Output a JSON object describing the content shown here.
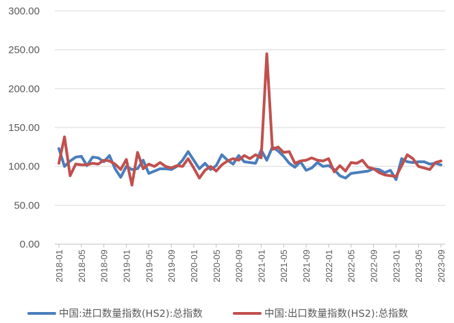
{
  "chart_data": {
    "type": "line",
    "title": "",
    "xlabel": "",
    "ylabel": "",
    "ylim": [
      0,
      300
    ],
    "y_ticks": [
      0,
      50,
      100,
      150,
      200,
      250,
      300
    ],
    "y_tick_labels": [
      "0.00",
      "50.00",
      "100.00",
      "150.00",
      "200.00",
      "250.00",
      "300.00"
    ],
    "grid": "horizontal",
    "legend_position": "bottom",
    "x": [
      "2018-01",
      "2018-02",
      "2018-03",
      "2018-04",
      "2018-05",
      "2018-06",
      "2018-07",
      "2018-08",
      "2018-09",
      "2018-10",
      "2018-11",
      "2018-12",
      "2019-01",
      "2019-02",
      "2019-03",
      "2019-04",
      "2019-05",
      "2019-06",
      "2019-07",
      "2019-08",
      "2019-09",
      "2019-10",
      "2019-11",
      "2019-12",
      "2020-01",
      "2020-02",
      "2020-03",
      "2020-04",
      "2020-05",
      "2020-06",
      "2020-07",
      "2020-08",
      "2020-09",
      "2020-10",
      "2020-11",
      "2020-12",
      "2021-01",
      "2021-02",
      "2021-03",
      "2021-04",
      "2021-05",
      "2021-06",
      "2021-07",
      "2021-08",
      "2021-09",
      "2021-10",
      "2021-11",
      "2021-12",
      "2022-01",
      "2022-02",
      "2022-03",
      "2022-04",
      "2022-05",
      "2022-06",
      "2022-07",
      "2022-08",
      "2022-09",
      "2022-10",
      "2022-11",
      "2022-12",
      "2023-01",
      "2023-02",
      "2023-03",
      "2023-04",
      "2023-05",
      "2023-06",
      "2023-07",
      "2023-08",
      "2023-09"
    ],
    "x_tick_labels": [
      "2018-01",
      "2018-05",
      "2018-09",
      "2019-01",
      "2019-05",
      "2019-09",
      "2020-01",
      "2020-05",
      "2020-09",
      "2021-01",
      "2021-05",
      "2021-09",
      "2022-01",
      "2022-05",
      "2022-09",
      "2023-01",
      "2023-05",
      "2023-09"
    ],
    "series": [
      {
        "name": "中国:进口数量指数(HS2):总指数",
        "color": "#4a7ebb",
        "values": [
          123,
          100,
          107,
          112,
          113,
          101,
          112,
          111,
          106,
          114,
          97,
          86,
          100,
          96,
          97,
          108,
          91,
          94,
          97,
          97,
          96,
          100,
          108,
          119,
          108,
          97,
          104,
          96,
          101,
          115,
          108,
          103,
          114,
          106,
          105,
          104,
          121,
          108,
          125,
          120,
          113,
          104,
          99,
          106,
          95,
          98,
          105,
          100,
          101,
          96,
          88,
          85,
          91,
          92,
          93,
          94,
          97,
          96,
          92,
          95,
          83,
          110,
          106,
          105,
          106,
          106,
          103,
          104,
          102
        ]
      },
      {
        "name": "中国:出口数量指数(HS2):总指数",
        "color": "#c0504d",
        "values": [
          104,
          138,
          88,
          103,
          102,
          102,
          104,
          103,
          108,
          107,
          103,
          96,
          109,
          76,
          118,
          97,
          103,
          100,
          105,
          100,
          98,
          101,
          100,
          110,
          98,
          85,
          95,
          100,
          94,
          102,
          107,
          110,
          108,
          114,
          110,
          115,
          111,
          245,
          122,
          125,
          118,
          119,
          104,
          107,
          108,
          111,
          108,
          107,
          110,
          93,
          101,
          94,
          105,
          104,
          108,
          99,
          97,
          92,
          89,
          88,
          87,
          101,
          115,
          110,
          100,
          98,
          96,
          105,
          107
        ]
      }
    ]
  }
}
